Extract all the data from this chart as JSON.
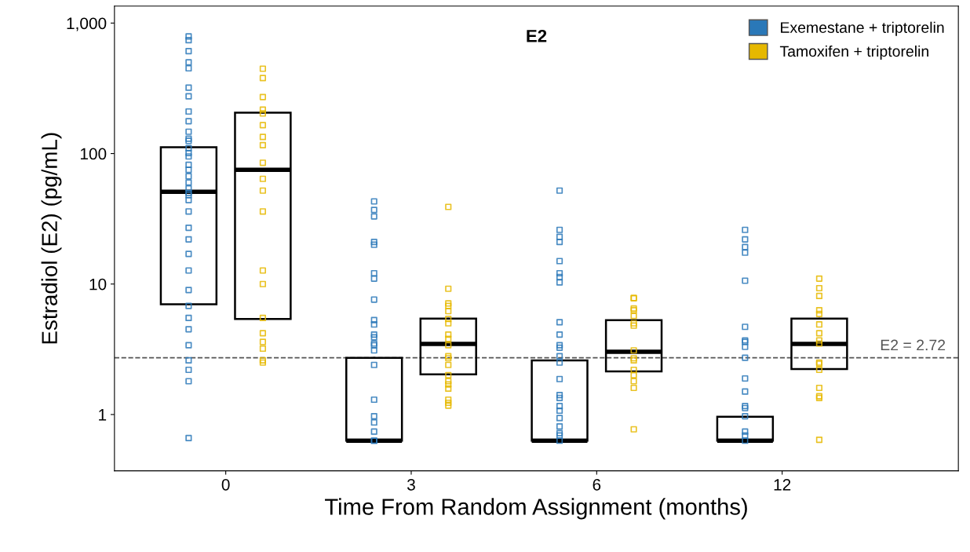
{
  "chart_data": {
    "type": "box",
    "title": "E2",
    "xlabel": "Time From Random Assignment (months)",
    "ylabel": "Estradiol (E2) (pg/mL)",
    "categories": [
      "0",
      "3",
      "6",
      "12"
    ],
    "log": true,
    "ylim": [
      0.37,
      1350
    ],
    "yticks": [
      1,
      10,
      100,
      {
        "value": 1000,
        "label": "1,000"
      }
    ],
    "grid": false,
    "legend": "top right",
    "marker": "square",
    "ref_lines": [
      {
        "axis": "y",
        "value": 2.72,
        "label": "E2 = 2.72",
        "color": "#555555",
        "line_style": "dashed"
      }
    ],
    "series": [
      {
        "color": "#000000",
        "boxes": [
          {
            "low": 7,
            "q1": 7,
            "median": 51,
            "q3": 112,
            "high": 112
          },
          {
            "low": 0.63,
            "q1": 0.63,
            "median": 0.63,
            "q3": 2.72,
            "high": 2.72
          },
          {
            "low": 0.63,
            "q1": 0.63,
            "median": 0.63,
            "q3": 2.6,
            "high": 2.6
          },
          {
            "low": 0.63,
            "q1": 0.63,
            "median": 0.63,
            "q3": 0.96,
            "high": 0.96
          }
        ]
      },
      {
        "color": "#000000",
        "boxes": [
          {
            "low": 5.4,
            "q1": 5.4,
            "median": 75,
            "q3": 206,
            "high": 206
          },
          {
            "low": 2.03,
            "q1": 2.03,
            "median": 3.48,
            "q3": 5.43,
            "high": 5.43
          },
          {
            "low": 2.14,
            "q1": 2.14,
            "median": 3.03,
            "q3": 5.28,
            "high": 5.28
          },
          {
            "low": 2.23,
            "q1": 2.23,
            "median": 3.48,
            "q3": 5.43,
            "high": 5.43
          }
        ]
      },
      {
        "type": "scatter",
        "name": "Exemestane + triptorelin",
        "color": "#2a78b8",
        "x": [
          "0",
          "0",
          "0",
          "0",
          "0",
          "0",
          "0",
          "0",
          "0",
          "0",
          "0",
          "0",
          "0",
          "0",
          "0",
          "0",
          "0",
          "0",
          "0",
          "0",
          "0",
          "0",
          "0",
          "0",
          "0",
          "0",
          "0",
          "0",
          "0",
          "0",
          "0",
          "0",
          "0",
          "0",
          "0",
          "0",
          "0",
          "3",
          "3",
          "3",
          "3",
          "3",
          "3",
          "3",
          "3",
          "3",
          "3",
          "3",
          "3",
          "3",
          "3",
          "3",
          "3",
          "3",
          "3",
          "3",
          "3",
          "3",
          "3",
          "6",
          "6",
          "6",
          "6",
          "6",
          "6",
          "6",
          "6",
          "6",
          "6",
          "6",
          "6",
          "6",
          "6",
          "6",
          "6",
          "6",
          "6",
          "6",
          "6",
          "6",
          "6",
          "6",
          "6",
          "12",
          "12",
          "12",
          "12",
          "12",
          "12",
          "12",
          "12",
          "12",
          "12",
          "12",
          "12",
          "12",
          "12",
          "12",
          "12",
          "12",
          "12"
        ],
        "values": [
          790,
          740,
          610,
          500,
          450,
          320,
          275,
          210,
          177,
          147,
          130,
          125,
          110,
          101,
          95,
          82,
          75,
          67,
          60,
          54,
          50,
          48,
          44,
          36,
          27,
          22,
          17,
          12.7,
          9,
          6.8,
          5.5,
          4.5,
          3.4,
          2.6,
          2.2,
          1.8,
          0.66,
          43,
          37,
          33,
          21,
          20,
          12.1,
          11,
          7.6,
          5.3,
          4.9,
          4.1,
          3.9,
          3.5,
          3.4,
          3.1,
          2.4,
          1.3,
          0.97,
          0.87,
          0.74,
          0.63,
          0.63,
          52,
          26,
          23,
          21,
          15,
          12.1,
          11.3,
          10.3,
          5.1,
          4.1,
          3.4,
          3.25,
          2.8,
          2.5,
          1.87,
          1.41,
          1.34,
          1.16,
          1.07,
          0.94,
          0.81,
          0.72,
          0.69,
          0.63,
          26,
          22,
          19.2,
          17.4,
          10.6,
          4.7,
          3.7,
          3.6,
          3.3,
          2.72,
          1.89,
          1.5,
          1.16,
          1.12,
          0.97,
          0.74,
          0.69,
          0.63
        ]
      },
      {
        "type": "scatter",
        "name": "Tamoxifen + triptorelin",
        "color": "#e6b800",
        "x": [
          "0",
          "0",
          "0",
          "0",
          "0",
          "0",
          "0",
          "0",
          "0",
          "0",
          "0",
          "0",
          "0",
          "0",
          "0",
          "0",
          "0",
          "0",
          "0",
          "0",
          "3",
          "3",
          "3",
          "3",
          "3",
          "3",
          "3",
          "3",
          "3",
          "3",
          "3",
          "3",
          "3",
          "3",
          "3",
          "3",
          "3",
          "3",
          "3",
          "3",
          "6",
          "6",
          "6",
          "6",
          "6",
          "6",
          "6",
          "6",
          "6",
          "6",
          "6",
          "6",
          "6",
          "6",
          "6",
          "12",
          "12",
          "12",
          "12",
          "12",
          "12",
          "12",
          "12",
          "12",
          "12",
          "12",
          "12",
          "12",
          "12",
          "12",
          "12"
        ],
        "values": [
          447,
          379,
          271,
          217,
          203,
          165,
          134,
          116,
          85,
          64,
          52,
          36,
          12.7,
          10,
          5.5,
          4.2,
          3.6,
          3.2,
          2.6,
          2.5,
          39,
          9.2,
          7.1,
          6.8,
          6.2,
          5.4,
          5.0,
          4.1,
          3.8,
          3.4,
          2.8,
          2.7,
          2.4,
          2.0,
          1.8,
          1.7,
          1.58,
          1.3,
          1.23,
          1.17,
          7.8,
          7.8,
          6.5,
          6.3,
          5.7,
          5.0,
          4.8,
          3.1,
          2.7,
          2.6,
          2.2,
          2.0,
          1.8,
          1.6,
          0.77,
          11,
          9.3,
          8.1,
          6.3,
          5.9,
          4.9,
          4.2,
          3.7,
          3.5,
          2.5,
          2.45,
          2.2,
          1.6,
          1.38,
          1.34,
          0.64
        ]
      }
    ]
  }
}
